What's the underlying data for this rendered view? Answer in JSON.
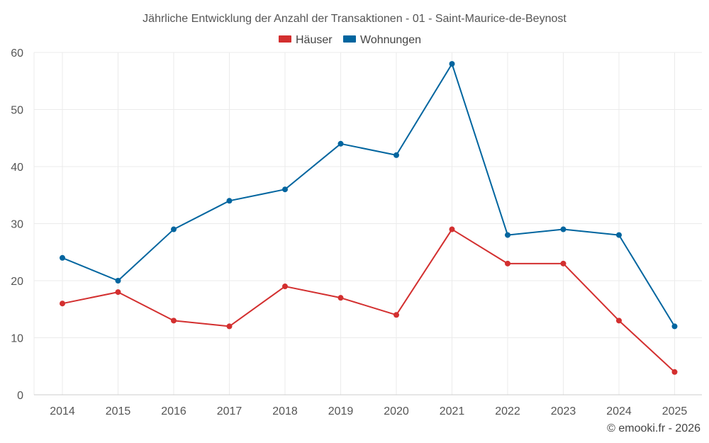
{
  "chart_data": {
    "type": "line",
    "title": "Jährliche Entwicklung der Anzahl der Transaktionen - 01 - Saint-Maurice-de-Beynost",
    "xlabel": "",
    "ylabel": "",
    "categories": [
      "2014",
      "2015",
      "2016",
      "2017",
      "2018",
      "2019",
      "2020",
      "2021",
      "2022",
      "2023",
      "2024",
      "2025"
    ],
    "ylim": [
      0,
      60
    ],
    "yticks": [
      0,
      10,
      20,
      30,
      40,
      50,
      60
    ],
    "grid": true,
    "legend_position": "top-center",
    "series": [
      {
        "name": "Häuser",
        "color": "#d32f2f",
        "values": [
          16,
          18,
          13,
          12,
          19,
          17,
          14,
          29,
          23,
          23,
          13,
          4
        ]
      },
      {
        "name": "Wohnungen",
        "color": "#01659f",
        "values": [
          24,
          20,
          29,
          34,
          36,
          44,
          42,
          58,
          28,
          29,
          28,
          12
        ]
      }
    ]
  },
  "credit": "© emooki.fr - 2026"
}
